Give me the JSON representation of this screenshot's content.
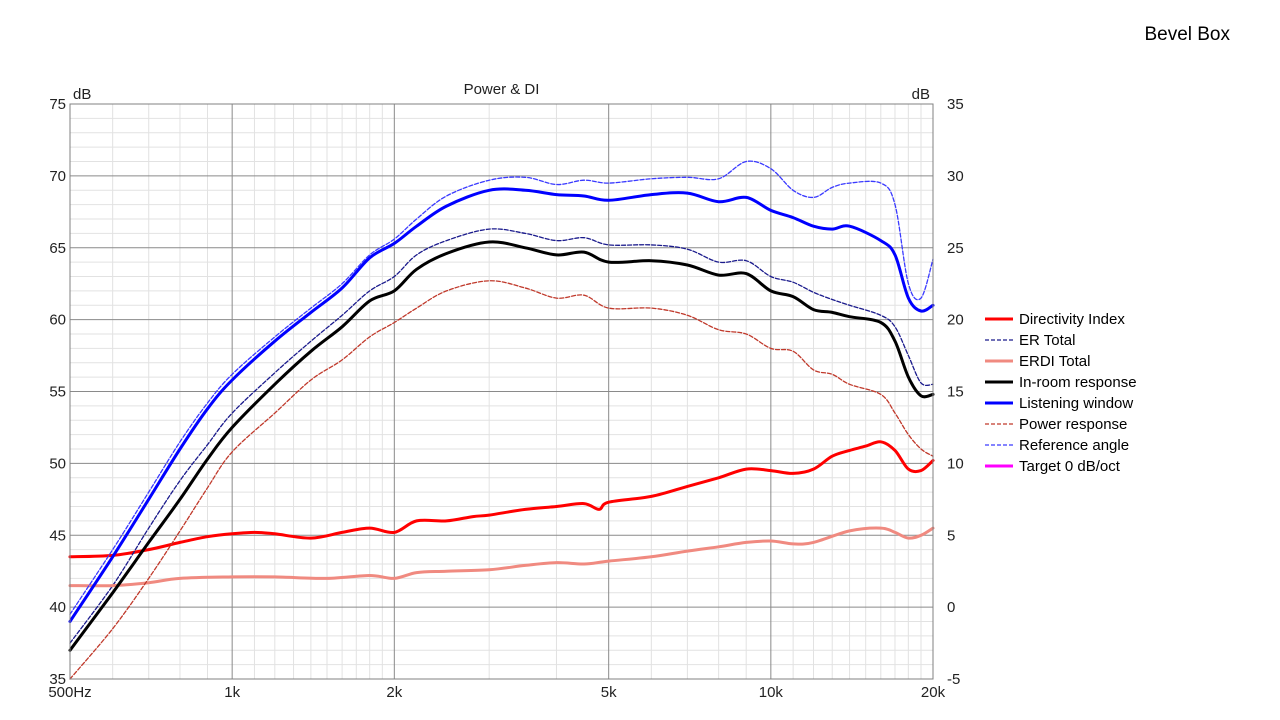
{
  "corner_label": "Bevel Box",
  "chart_data": {
    "type": "line",
    "title": "Power & DI",
    "ylabel_left": "dB",
    "ylabel_right": "dB",
    "xscale": "log",
    "xlim": [
      500,
      20000
    ],
    "ylim_left": [
      35,
      75
    ],
    "ylim_right": [
      -5,
      35
    ],
    "grid": true,
    "legend_position": "right",
    "x_ticks": [
      {
        "value": 500,
        "label": "500Hz"
      },
      {
        "value": 1000,
        "label": "1k"
      },
      {
        "value": 2000,
        "label": "2k"
      },
      {
        "value": 5000,
        "label": "5k"
      },
      {
        "value": 10000,
        "label": "10k"
      },
      {
        "value": 20000,
        "label": "20k"
      }
    ],
    "y_ticks_left": [
      "75",
      "70",
      "65",
      "60",
      "55",
      "50",
      "45",
      "40",
      "35"
    ],
    "y_ticks_right": [
      "35",
      "30",
      "25",
      "20",
      "15",
      "10",
      "5",
      "0",
      "-5"
    ],
    "series": [
      {
        "name": "Directivity Index",
        "axis": "right",
        "color": "#ff0000",
        "style": "solid",
        "width": 3,
        "points": [
          [
            500,
            3.5
          ],
          [
            600,
            3.6
          ],
          [
            700,
            4.0
          ],
          [
            800,
            4.5
          ],
          [
            900,
            4.9
          ],
          [
            1000,
            5.1
          ],
          [
            1100,
            5.2
          ],
          [
            1200,
            5.1
          ],
          [
            1400,
            4.8
          ],
          [
            1600,
            5.2
          ],
          [
            1800,
            5.5
          ],
          [
            2000,
            5.2
          ],
          [
            2200,
            6.0
          ],
          [
            2500,
            6.0
          ],
          [
            2800,
            6.3
          ],
          [
            3000,
            6.4
          ],
          [
            3500,
            6.8
          ],
          [
            4000,
            7.0
          ],
          [
            4500,
            7.2
          ],
          [
            4800,
            6.8
          ],
          [
            5000,
            7.3
          ],
          [
            6000,
            7.7
          ],
          [
            7000,
            8.4
          ],
          [
            8000,
            9.0
          ],
          [
            9000,
            9.6
          ],
          [
            10000,
            9.5
          ],
          [
            11000,
            9.3
          ],
          [
            12000,
            9.6
          ],
          [
            13000,
            10.5
          ],
          [
            14000,
            10.9
          ],
          [
            15000,
            11.2
          ],
          [
            16000,
            11.5
          ],
          [
            17000,
            10.9
          ],
          [
            18000,
            9.6
          ],
          [
            19000,
            9.5
          ],
          [
            20000,
            10.2
          ]
        ]
      },
      {
        "name": "ER Total",
        "axis": "left",
        "color": "#1a1a8c",
        "style": "dashed",
        "width": 1.3,
        "points": [
          [
            500,
            37.5
          ],
          [
            600,
            41.5
          ],
          [
            700,
            45.5
          ],
          [
            800,
            48.8
          ],
          [
            900,
            51.3
          ],
          [
            1000,
            53.5
          ],
          [
            1200,
            56.3
          ],
          [
            1400,
            58.5
          ],
          [
            1600,
            60.3
          ],
          [
            1800,
            62.0
          ],
          [
            2000,
            63.0
          ],
          [
            2200,
            64.5
          ],
          [
            2500,
            65.5
          ],
          [
            3000,
            66.3
          ],
          [
            3500,
            66.0
          ],
          [
            4000,
            65.5
          ],
          [
            4500,
            65.7
          ],
          [
            5000,
            65.2
          ],
          [
            6000,
            65.2
          ],
          [
            7000,
            64.9
          ],
          [
            8000,
            64.0
          ],
          [
            9000,
            64.1
          ],
          [
            10000,
            63.0
          ],
          [
            11000,
            62.6
          ],
          [
            12000,
            61.9
          ],
          [
            13000,
            61.4
          ],
          [
            14000,
            61.0
          ],
          [
            16000,
            60.3
          ],
          [
            17000,
            59.5
          ],
          [
            18000,
            57.5
          ],
          [
            19000,
            55.6
          ],
          [
            20000,
            55.5
          ]
        ]
      },
      {
        "name": "ERDI Total",
        "axis": "right",
        "color": "#f08a80",
        "style": "solid",
        "width": 3,
        "points": [
          [
            500,
            1.5
          ],
          [
            600,
            1.5
          ],
          [
            700,
            1.7
          ],
          [
            800,
            2.0
          ],
          [
            1000,
            2.1
          ],
          [
            1200,
            2.1
          ],
          [
            1500,
            2.0
          ],
          [
            1800,
            2.2
          ],
          [
            2000,
            2.0
          ],
          [
            2200,
            2.4
          ],
          [
            2500,
            2.5
          ],
          [
            3000,
            2.6
          ],
          [
            3500,
            2.9
          ],
          [
            4000,
            3.1
          ],
          [
            4500,
            3.0
          ],
          [
            5000,
            3.2
          ],
          [
            6000,
            3.5
          ],
          [
            7000,
            3.9
          ],
          [
            8000,
            4.2
          ],
          [
            9000,
            4.5
          ],
          [
            10000,
            4.6
          ],
          [
            11000,
            4.4
          ],
          [
            12000,
            4.5
          ],
          [
            14000,
            5.3
          ],
          [
            16000,
            5.5
          ],
          [
            17000,
            5.2
          ],
          [
            18000,
            4.8
          ],
          [
            19000,
            5.0
          ],
          [
            20000,
            5.5
          ]
        ]
      },
      {
        "name": "In-room response",
        "axis": "left",
        "color": "#000000",
        "style": "solid",
        "width": 3,
        "points": [
          [
            500,
            37.0
          ],
          [
            600,
            41.0
          ],
          [
            700,
            44.5
          ],
          [
            800,
            47.5
          ],
          [
            900,
            50.3
          ],
          [
            1000,
            52.5
          ],
          [
            1200,
            55.5
          ],
          [
            1400,
            57.8
          ],
          [
            1600,
            59.5
          ],
          [
            1800,
            61.3
          ],
          [
            2000,
            62.0
          ],
          [
            2200,
            63.5
          ],
          [
            2500,
            64.6
          ],
          [
            3000,
            65.4
          ],
          [
            3500,
            65.0
          ],
          [
            4000,
            64.5
          ],
          [
            4500,
            64.7
          ],
          [
            5000,
            64.0
          ],
          [
            6000,
            64.1
          ],
          [
            7000,
            63.8
          ],
          [
            8000,
            63.1
          ],
          [
            9000,
            63.2
          ],
          [
            10000,
            62.0
          ],
          [
            11000,
            61.6
          ],
          [
            12000,
            60.7
          ],
          [
            13000,
            60.5
          ],
          [
            14000,
            60.2
          ],
          [
            16000,
            59.8
          ],
          [
            17000,
            58.5
          ],
          [
            18000,
            56.0
          ],
          [
            19000,
            54.7
          ],
          [
            20000,
            54.8
          ]
        ]
      },
      {
        "name": "Listening window",
        "axis": "left",
        "color": "#0000ff",
        "style": "solid",
        "width": 3,
        "points": [
          [
            500,
            39.0
          ],
          [
            600,
            43.5
          ],
          [
            700,
            47.5
          ],
          [
            800,
            51.0
          ],
          [
            900,
            53.8
          ],
          [
            1000,
            55.8
          ],
          [
            1200,
            58.5
          ],
          [
            1400,
            60.5
          ],
          [
            1600,
            62.2
          ],
          [
            1800,
            64.3
          ],
          [
            2000,
            65.3
          ],
          [
            2200,
            66.5
          ],
          [
            2500,
            67.9
          ],
          [
            3000,
            69.0
          ],
          [
            3500,
            69.0
          ],
          [
            4000,
            68.7
          ],
          [
            4500,
            68.6
          ],
          [
            5000,
            68.3
          ],
          [
            6000,
            68.7
          ],
          [
            7000,
            68.8
          ],
          [
            8000,
            68.2
          ],
          [
            9000,
            68.5
          ],
          [
            10000,
            67.6
          ],
          [
            11000,
            67.1
          ],
          [
            12000,
            66.5
          ],
          [
            13000,
            66.3
          ],
          [
            14000,
            66.5
          ],
          [
            16000,
            65.5
          ],
          [
            17000,
            64.5
          ],
          [
            18000,
            61.5
          ],
          [
            19000,
            60.6
          ],
          [
            20000,
            61.0
          ]
        ]
      },
      {
        "name": "Power response",
        "axis": "left",
        "color": "#c0392b",
        "style": "dashed",
        "width": 1.3,
        "points": [
          [
            500,
            35.0
          ],
          [
            600,
            38.5
          ],
          [
            700,
            42.0
          ],
          [
            800,
            45.3
          ],
          [
            900,
            48.3
          ],
          [
            1000,
            50.8
          ],
          [
            1200,
            53.5
          ],
          [
            1400,
            55.8
          ],
          [
            1600,
            57.2
          ],
          [
            1800,
            58.8
          ],
          [
            2000,
            59.8
          ],
          [
            2200,
            60.8
          ],
          [
            2500,
            62.0
          ],
          [
            3000,
            62.7
          ],
          [
            3500,
            62.2
          ],
          [
            4000,
            61.5
          ],
          [
            4500,
            61.7
          ],
          [
            5000,
            60.8
          ],
          [
            6000,
            60.8
          ],
          [
            7000,
            60.3
          ],
          [
            8000,
            59.3
          ],
          [
            9000,
            59.0
          ],
          [
            10000,
            58.0
          ],
          [
            11000,
            57.8
          ],
          [
            12000,
            56.5
          ],
          [
            13000,
            56.2
          ],
          [
            14000,
            55.5
          ],
          [
            16000,
            54.8
          ],
          [
            17000,
            53.5
          ],
          [
            18000,
            52.0
          ],
          [
            19000,
            51.0
          ],
          [
            20000,
            50.5
          ]
        ]
      },
      {
        "name": "Reference angle",
        "axis": "left",
        "color": "#3a3aff",
        "style": "dashed",
        "width": 1.3,
        "points": [
          [
            500,
            39.5
          ],
          [
            600,
            44.0
          ],
          [
            700,
            48.0
          ],
          [
            800,
            51.5
          ],
          [
            900,
            54.2
          ],
          [
            1000,
            56.2
          ],
          [
            1200,
            58.8
          ],
          [
            1400,
            60.8
          ],
          [
            1600,
            62.5
          ],
          [
            1800,
            64.5
          ],
          [
            2000,
            65.6
          ],
          [
            2200,
            67.0
          ],
          [
            2500,
            68.6
          ],
          [
            3000,
            69.7
          ],
          [
            3500,
            69.9
          ],
          [
            4000,
            69.4
          ],
          [
            4500,
            69.7
          ],
          [
            5000,
            69.5
          ],
          [
            6000,
            69.8
          ],
          [
            7000,
            69.9
          ],
          [
            8000,
            69.8
          ],
          [
            9000,
            71.0
          ],
          [
            10000,
            70.5
          ],
          [
            11000,
            69.0
          ],
          [
            12000,
            68.5
          ],
          [
            13000,
            69.2
          ],
          [
            14000,
            69.5
          ],
          [
            16000,
            69.5
          ],
          [
            17000,
            68.0
          ],
          [
            18000,
            62.5
          ],
          [
            19000,
            61.5
          ],
          [
            20000,
            64.2
          ]
        ]
      },
      {
        "name": "Target 0 dB/oct",
        "axis": "left",
        "color": "#ff00ff",
        "style": "solid",
        "width": 3,
        "points": []
      }
    ]
  }
}
